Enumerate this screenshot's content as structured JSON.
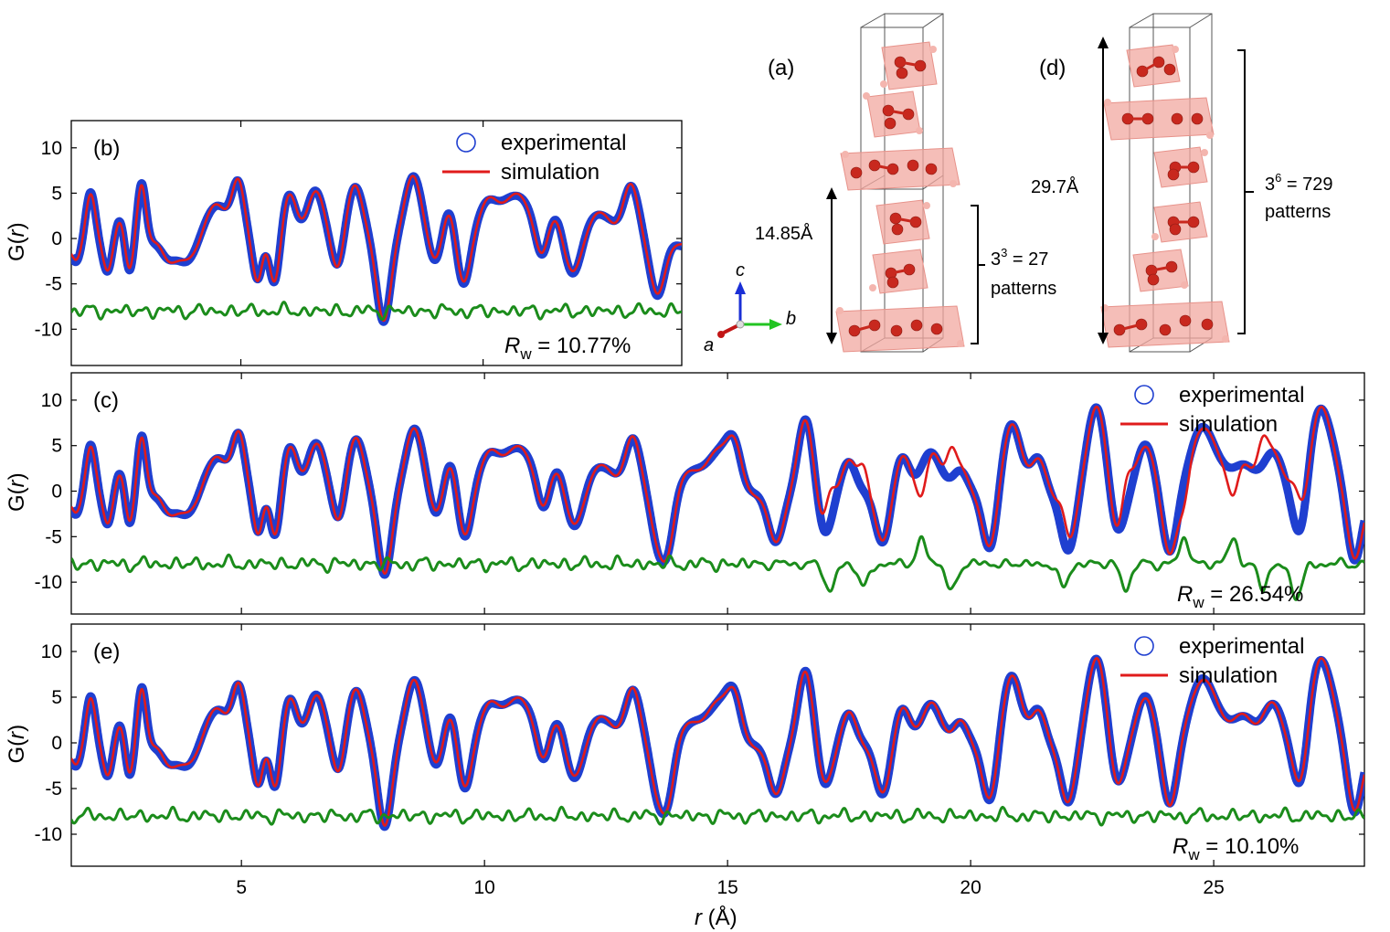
{
  "figure": {
    "xlabel_prefix": "r",
    "xlabel_suffix": " (Å)",
    "ylabel_prefix": "G(",
    "ylabel_var": "r",
    "ylabel_suffix": ")"
  },
  "structures": {
    "a": {
      "label": "(a)",
      "height": "14.85Å",
      "pattern_base": "3",
      "pattern_exp": "3",
      "pattern_rest": " = 27",
      "pattern_word": "patterns"
    },
    "d": {
      "label": "(d)",
      "height": "29.7Å",
      "pattern_base": "3",
      "pattern_exp": "6",
      "pattern_rest": " = 729",
      "pattern_word": "patterns"
    },
    "axes": {
      "a": "a",
      "b": "b",
      "c": "c"
    }
  },
  "colors": {
    "experimental": "#1f3fd0",
    "simulation": "#e01b1b",
    "difference": "#1b8c1b",
    "atom": "#c8281e",
    "octahedron": "#f2a8a0"
  },
  "chart_data": [
    {
      "panel": "b",
      "type": "line",
      "label": "(b)",
      "xlim": [
        1.5,
        14.1
      ],
      "ylim": [
        -14,
        13
      ],
      "xticks": [
        5,
        10
      ],
      "yticks": [
        10,
        5,
        0,
        -5,
        -10
      ],
      "ytick_labels": [
        "10",
        "5",
        "0",
        "-5",
        "-10"
      ],
      "legend": [
        "experimental",
        "simulation"
      ],
      "rw_prefix": "R",
      "rw_sub": "w",
      "rw_value": " = 10.77%",
      "diff_offset": -8,
      "peaks": [
        [
          1.9,
          5.5,
          0.1
        ],
        [
          2.5,
          2.5,
          0.09
        ],
        [
          2.95,
          6.5,
          0.09
        ],
        [
          3.3,
          0.6,
          0.12
        ],
        [
          4.45,
          5.0,
          0.25
        ],
        [
          4.95,
          6.5,
          0.13
        ],
        [
          5.5,
          1.2,
          0.1
        ],
        [
          6.0,
          5.5,
          0.15
        ],
        [
          6.55,
          5.8,
          0.18
        ],
        [
          7.35,
          6.5,
          0.17
        ],
        [
          8.55,
          7.5,
          0.18
        ],
        [
          9.3,
          3.5,
          0.12
        ],
        [
          10.1,
          4.5,
          0.2
        ],
        [
          10.7,
          5.5,
          0.28
        ],
        [
          11.5,
          3.0,
          0.15
        ],
        [
          12.4,
          3.5,
          0.25
        ],
        [
          13.05,
          6.5,
          0.16
        ]
      ],
      "dips": [
        [
          1.6,
          1.8,
          0.1
        ],
        [
          2.25,
          3.0,
          0.09
        ],
        [
          2.7,
          3.0,
          0.08
        ],
        [
          3.5,
          1.5,
          0.15
        ],
        [
          4.0,
          2.2,
          0.3
        ],
        [
          5.35,
          4.5,
          0.1
        ],
        [
          5.7,
          5.0,
          0.11
        ],
        [
          7.0,
          3.5,
          0.12
        ],
        [
          7.95,
          8.5,
          0.14
        ],
        [
          9.0,
          2.0,
          0.12
        ],
        [
          9.6,
          4.5,
          0.13
        ],
        [
          11.2,
          2.5,
          0.12
        ],
        [
          11.85,
          3.5,
          0.18
        ],
        [
          13.6,
          5.5,
          0.15
        ]
      ],
      "sim_mismatch": []
    },
    {
      "panel": "c",
      "type": "line",
      "label": "(c)",
      "xlim": [
        1.5,
        28.1
      ],
      "ylim": [
        -13.5,
        13
      ],
      "xticks": [
        5,
        10,
        15,
        20,
        25
      ],
      "yticks": [
        10,
        5,
        0,
        -5,
        -10
      ],
      "ytick_labels": [
        "10",
        "5",
        "0",
        "-5",
        "-10"
      ],
      "legend": [
        "experimental",
        "simulation"
      ],
      "rw_prefix": "R",
      "rw_sub": "w",
      "rw_value": " = 26.54%",
      "diff_offset": -8,
      "peaks": [
        [
          1.9,
          5.5,
          0.1
        ],
        [
          2.5,
          2.5,
          0.09
        ],
        [
          2.95,
          6.5,
          0.09
        ],
        [
          3.3,
          0.6,
          0.12
        ],
        [
          4.45,
          5.0,
          0.25
        ],
        [
          4.95,
          6.5,
          0.13
        ],
        [
          5.5,
          1.2,
          0.1
        ],
        [
          6.0,
          5.5,
          0.15
        ],
        [
          6.55,
          5.8,
          0.18
        ],
        [
          7.35,
          6.5,
          0.17
        ],
        [
          8.55,
          7.5,
          0.18
        ],
        [
          9.3,
          3.5,
          0.12
        ],
        [
          10.1,
          4.5,
          0.2
        ],
        [
          10.7,
          5.5,
          0.28
        ],
        [
          11.5,
          3.0,
          0.15
        ],
        [
          12.4,
          3.5,
          0.25
        ],
        [
          13.05,
          6.5,
          0.16
        ],
        [
          14.2,
          2.5,
          0.2
        ],
        [
          14.8,
          5.0,
          0.25
        ],
        [
          15.15,
          4.5,
          0.15
        ],
        [
          16.6,
          8.5,
          0.16
        ],
        [
          17.5,
          4.0,
          0.15
        ],
        [
          18.6,
          4.5,
          0.16
        ],
        [
          19.2,
          5.0,
          0.2
        ],
        [
          19.8,
          3.0,
          0.15
        ],
        [
          20.85,
          8.0,
          0.2
        ],
        [
          21.4,
          4.0,
          0.15
        ],
        [
          22.6,
          10.0,
          0.2
        ],
        [
          23.6,
          5.5,
          0.2
        ],
        [
          24.8,
          7.5,
          0.3
        ],
        [
          25.6,
          3.5,
          0.2
        ],
        [
          26.2,
          5.0,
          0.2
        ],
        [
          27.2,
          10.0,
          0.25
        ]
      ],
      "dips": [
        [
          1.6,
          1.8,
          0.1
        ],
        [
          2.25,
          3.0,
          0.09
        ],
        [
          2.7,
          3.0,
          0.08
        ],
        [
          3.5,
          1.5,
          0.15
        ],
        [
          4.0,
          2.2,
          0.3
        ],
        [
          5.35,
          4.5,
          0.1
        ],
        [
          5.7,
          5.0,
          0.11
        ],
        [
          7.0,
          3.5,
          0.12
        ],
        [
          7.95,
          8.5,
          0.14
        ],
        [
          9.0,
          2.0,
          0.12
        ],
        [
          9.6,
          4.5,
          0.13
        ],
        [
          11.2,
          2.5,
          0.12
        ],
        [
          11.85,
          3.5,
          0.18
        ],
        [
          13.6,
          5.5,
          0.15
        ],
        [
          13.8,
          4.0,
          0.12
        ],
        [
          16.0,
          5.0,
          0.15
        ],
        [
          17.0,
          4.0,
          0.15
        ],
        [
          18.2,
          5.0,
          0.15
        ],
        [
          20.4,
          6.0,
          0.15
        ],
        [
          22.0,
          6.0,
          0.15
        ],
        [
          23.0,
          5.0,
          0.15
        ],
        [
          24.1,
          7.0,
          0.15
        ],
        [
          26.8,
          6.0,
          0.15
        ],
        [
          27.9,
          7.0,
          0.15
        ]
      ],
      "sim_mismatch": [
        [
          17.1,
          3.5,
          0.1
        ],
        [
          17.8,
          3.0,
          0.1
        ],
        [
          19.0,
          -3.0,
          0.1
        ],
        [
          19.6,
          3.5,
          0.1
        ],
        [
          21.9,
          3.0,
          0.1
        ],
        [
          23.2,
          3.0,
          0.1
        ],
        [
          24.4,
          -3.0,
          0.1
        ],
        [
          25.4,
          -3.0,
          0.1
        ],
        [
          26.0,
          3.0,
          0.1
        ],
        [
          26.7,
          4.0,
          0.12
        ]
      ]
    },
    {
      "panel": "e",
      "type": "line",
      "label": "(e)",
      "xlim": [
        1.5,
        28.1
      ],
      "ylim": [
        -13.5,
        13
      ],
      "xticks": [
        5,
        10,
        15,
        20,
        25
      ],
      "xtick_labels": [
        "5",
        "10",
        "15",
        "20",
        "25"
      ],
      "yticks": [
        10,
        5,
        0,
        -5,
        -10
      ],
      "ytick_labels": [
        "10",
        "5",
        "0",
        "-5",
        "-10"
      ],
      "legend": [
        "experimental",
        "simulation"
      ],
      "rw_prefix": "R",
      "rw_sub": "w",
      "rw_value": " = 10.10%",
      "diff_offset": -8,
      "peaks": [
        [
          1.9,
          5.5,
          0.1
        ],
        [
          2.5,
          2.5,
          0.09
        ],
        [
          2.95,
          6.5,
          0.09
        ],
        [
          3.3,
          0.6,
          0.12
        ],
        [
          4.45,
          5.0,
          0.25
        ],
        [
          4.95,
          6.5,
          0.13
        ],
        [
          5.5,
          1.2,
          0.1
        ],
        [
          6.0,
          5.5,
          0.15
        ],
        [
          6.55,
          5.8,
          0.18
        ],
        [
          7.35,
          6.5,
          0.17
        ],
        [
          8.55,
          7.5,
          0.18
        ],
        [
          9.3,
          3.5,
          0.12
        ],
        [
          10.1,
          4.5,
          0.2
        ],
        [
          10.7,
          5.5,
          0.28
        ],
        [
          11.5,
          3.0,
          0.15
        ],
        [
          12.4,
          3.5,
          0.25
        ],
        [
          13.05,
          6.5,
          0.16
        ],
        [
          14.2,
          2.5,
          0.2
        ],
        [
          14.8,
          5.0,
          0.25
        ],
        [
          15.15,
          4.5,
          0.15
        ],
        [
          16.6,
          8.5,
          0.16
        ],
        [
          17.5,
          4.0,
          0.15
        ],
        [
          18.6,
          4.5,
          0.16
        ],
        [
          19.2,
          5.0,
          0.2
        ],
        [
          19.8,
          3.0,
          0.15
        ],
        [
          20.85,
          8.0,
          0.2
        ],
        [
          21.4,
          4.0,
          0.15
        ],
        [
          22.6,
          10.0,
          0.2
        ],
        [
          23.6,
          5.5,
          0.2
        ],
        [
          24.8,
          7.5,
          0.3
        ],
        [
          25.6,
          3.5,
          0.2
        ],
        [
          26.2,
          5.0,
          0.2
        ],
        [
          27.2,
          10.0,
          0.25
        ]
      ],
      "dips": [
        [
          1.6,
          1.8,
          0.1
        ],
        [
          2.25,
          3.0,
          0.09
        ],
        [
          2.7,
          3.0,
          0.08
        ],
        [
          3.5,
          1.5,
          0.15
        ],
        [
          4.0,
          2.2,
          0.3
        ],
        [
          5.35,
          4.5,
          0.1
        ],
        [
          5.7,
          5.0,
          0.11
        ],
        [
          7.0,
          3.5,
          0.12
        ],
        [
          7.95,
          8.5,
          0.14
        ],
        [
          9.0,
          2.0,
          0.12
        ],
        [
          9.6,
          4.5,
          0.13
        ],
        [
          11.2,
          2.5,
          0.12
        ],
        [
          11.85,
          3.5,
          0.18
        ],
        [
          13.6,
          5.5,
          0.15
        ],
        [
          13.8,
          4.0,
          0.12
        ],
        [
          16.0,
          5.0,
          0.15
        ],
        [
          17.0,
          4.0,
          0.15
        ],
        [
          18.2,
          5.0,
          0.15
        ],
        [
          20.4,
          6.0,
          0.15
        ],
        [
          22.0,
          6.0,
          0.15
        ],
        [
          23.0,
          5.0,
          0.15
        ],
        [
          24.1,
          7.0,
          0.15
        ],
        [
          26.8,
          6.0,
          0.15
        ],
        [
          27.9,
          7.0,
          0.15
        ]
      ],
      "sim_mismatch": []
    }
  ]
}
